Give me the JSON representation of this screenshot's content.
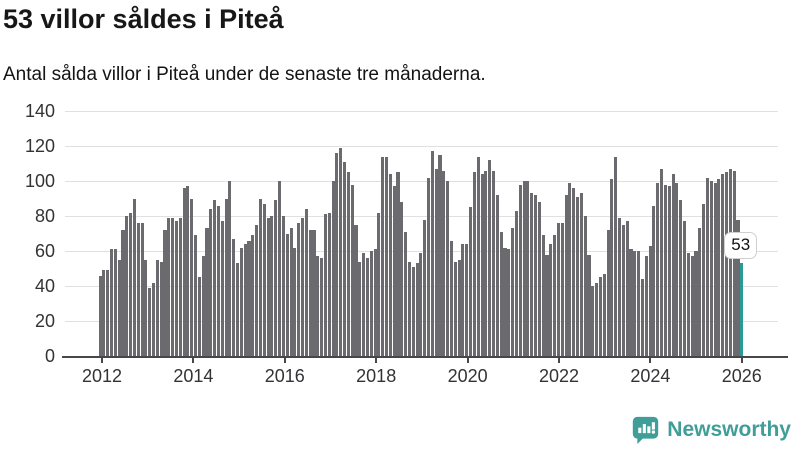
{
  "header": {
    "title": "53 villor såldes i Piteå",
    "subtitle": "Antal sålda villor i Piteå under de senaste tre månaderna."
  },
  "chart_data": {
    "type": "bar",
    "title": "53 villor såldes i Piteå",
    "subtitle": "Antal sålda villor i Piteå under de senaste tre månaderna.",
    "x_start": "2012-01",
    "x_end": "2026-01",
    "x_tick_labels": [
      "2012",
      "2014",
      "2016",
      "2018",
      "2020",
      "2022",
      "2024",
      "2026"
    ],
    "y_ticks": [
      0,
      20,
      40,
      60,
      80,
      100,
      120,
      140
    ],
    "ylim": [
      0,
      140
    ],
    "grid": "horizontal",
    "values": [
      46,
      49,
      49,
      61,
      61,
      55,
      72,
      80,
      82,
      90,
      76,
      76,
      55,
      39,
      42,
      55,
      54,
      72,
      79,
      79,
      77,
      79,
      96,
      97,
      90,
      69,
      45,
      57,
      73,
      84,
      89,
      86,
      77,
      90,
      100,
      67,
      53,
      62,
      64,
      66,
      69,
      75,
      90,
      87,
      79,
      80,
      89,
      100,
      80,
      70,
      73,
      62,
      76,
      79,
      84,
      72,
      72,
      57,
      56,
      81,
      82,
      100,
      116,
      119,
      111,
      105,
      98,
      75,
      54,
      59,
      56,
      60,
      61,
      82,
      114,
      114,
      104,
      97,
      105,
      88,
      71,
      54,
      51,
      53,
      59,
      78,
      102,
      117,
      107,
      115,
      106,
      100,
      66,
      54,
      55,
      64,
      64,
      85,
      105,
      114,
      104,
      106,
      112,
      106,
      92,
      71,
      62,
      61,
      73,
      83,
      98,
      100,
      100,
      93,
      92,
      88,
      69,
      58,
      64,
      69,
      76,
      76,
      92,
      99,
      96,
      91,
      93,
      80,
      58,
      40,
      42,
      45,
      47,
      72,
      101,
      114,
      79,
      75,
      77,
      61,
      60,
      60,
      44,
      57,
      63,
      86,
      99,
      107,
      98,
      97,
      104,
      99,
      89,
      77,
      59,
      57,
      60,
      73,
      87,
      102,
      100,
      99,
      101,
      104,
      105,
      107,
      106,
      78,
      53
    ],
    "highlight_last": true,
    "annotation": {
      "text": "53"
    },
    "colors": {
      "bar": "#6b6b6f",
      "highlight": "#299a95",
      "grid": "#e0e0e0",
      "axis": "#47474a"
    }
  },
  "branding": {
    "logo_text": "Newsworthy",
    "logo_icon": "bar-chart-speech-bubble-icon",
    "color": "#3f9e98"
  }
}
